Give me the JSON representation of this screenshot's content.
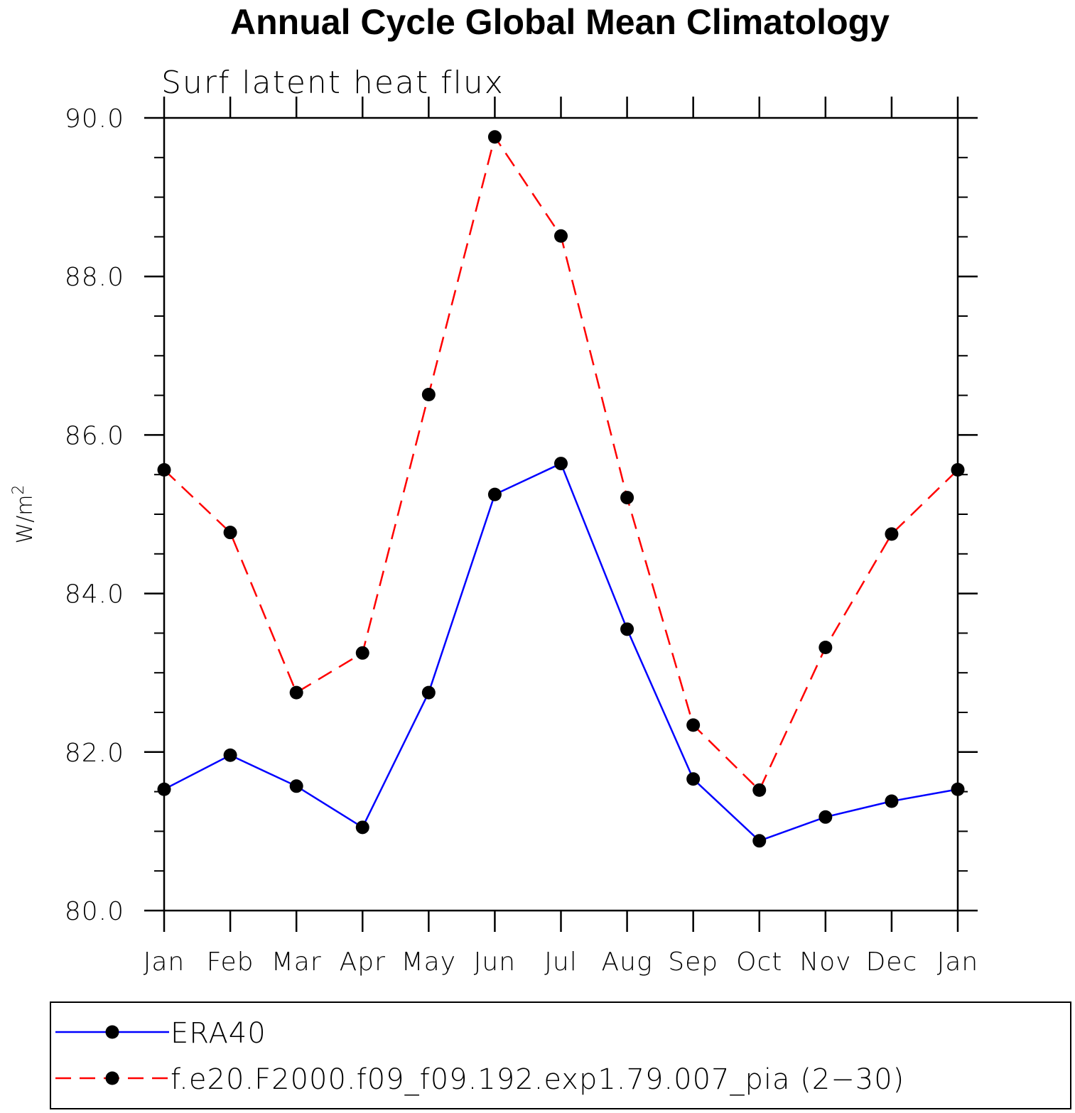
{
  "chart_data": {
    "type": "line",
    "title": "Annual Cycle Global Mean Climatology",
    "subtitle": "Surf latent heat flux",
    "ylabel": "W/m",
    "ylabel_sup": "2",
    "xlabel": "",
    "categories": [
      "Jan",
      "Feb",
      "Mar",
      "Apr",
      "May",
      "Jun",
      "Jul",
      "Aug",
      "Sep",
      "Oct",
      "Nov",
      "Dec",
      "Jan"
    ],
    "ylim": [
      80.0,
      90.0
    ],
    "yticks": [
      80.0,
      82.0,
      84.0,
      86.0,
      88.0,
      90.0
    ],
    "ytick_labels": [
      "80.0",
      "82.0",
      "84.0",
      "86.0",
      "88.0",
      "90.0"
    ],
    "grid": false,
    "legend_position": "bottom",
    "series": [
      {
        "name": "ERA40",
        "color": "#0000ff",
        "line_style": "solid",
        "marker": "filled-circle",
        "values": [
          81.53,
          81.96,
          81.57,
          81.05,
          82.75,
          85.25,
          85.64,
          83.55,
          81.66,
          80.88,
          81.18,
          81.38,
          81.53
        ]
      },
      {
        "name": "f.e20.F2000.f09_f09.192.exp1.79.007_pia (2−30)",
        "color": "#ff0000",
        "line_style": "dashed",
        "marker": "filled-circle",
        "values": [
          85.56,
          84.77,
          82.75,
          83.25,
          86.51,
          89.76,
          88.51,
          85.21,
          82.34,
          81.52,
          83.32,
          84.75,
          85.56
        ]
      }
    ]
  }
}
